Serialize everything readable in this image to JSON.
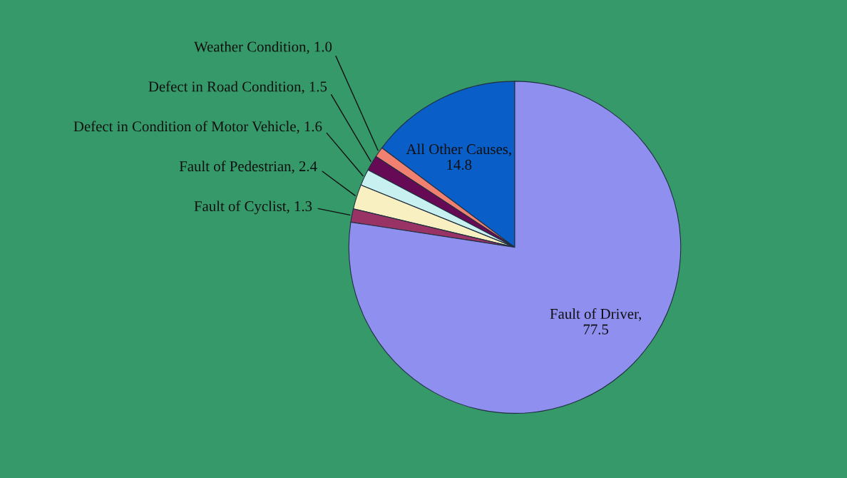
{
  "chart_data": {
    "type": "pie",
    "categories": [
      "All Other Causes",
      "Weather Condition",
      "Defect in Road Condition",
      "Defect in Condition of Motor Vehicle",
      "Fault of Pedestrian",
      "Fault of Cyclist",
      "Fault of Driver"
    ],
    "values": [
      14.8,
      1.0,
      1.5,
      1.6,
      2.4,
      1.3,
      77.5
    ],
    "colors": [
      "#0a5ec8",
      "#f08070",
      "#660a55",
      "#c8f0f0",
      "#f8f0c0",
      "#993366",
      "#8f8ff0"
    ],
    "value_labels": [
      ", 14.8",
      ", 1.0",
      ", 1.5",
      ", 1.6",
      ", 2.4",
      ", 1.3",
      ", 77.5"
    ],
    "legend": false
  }
}
